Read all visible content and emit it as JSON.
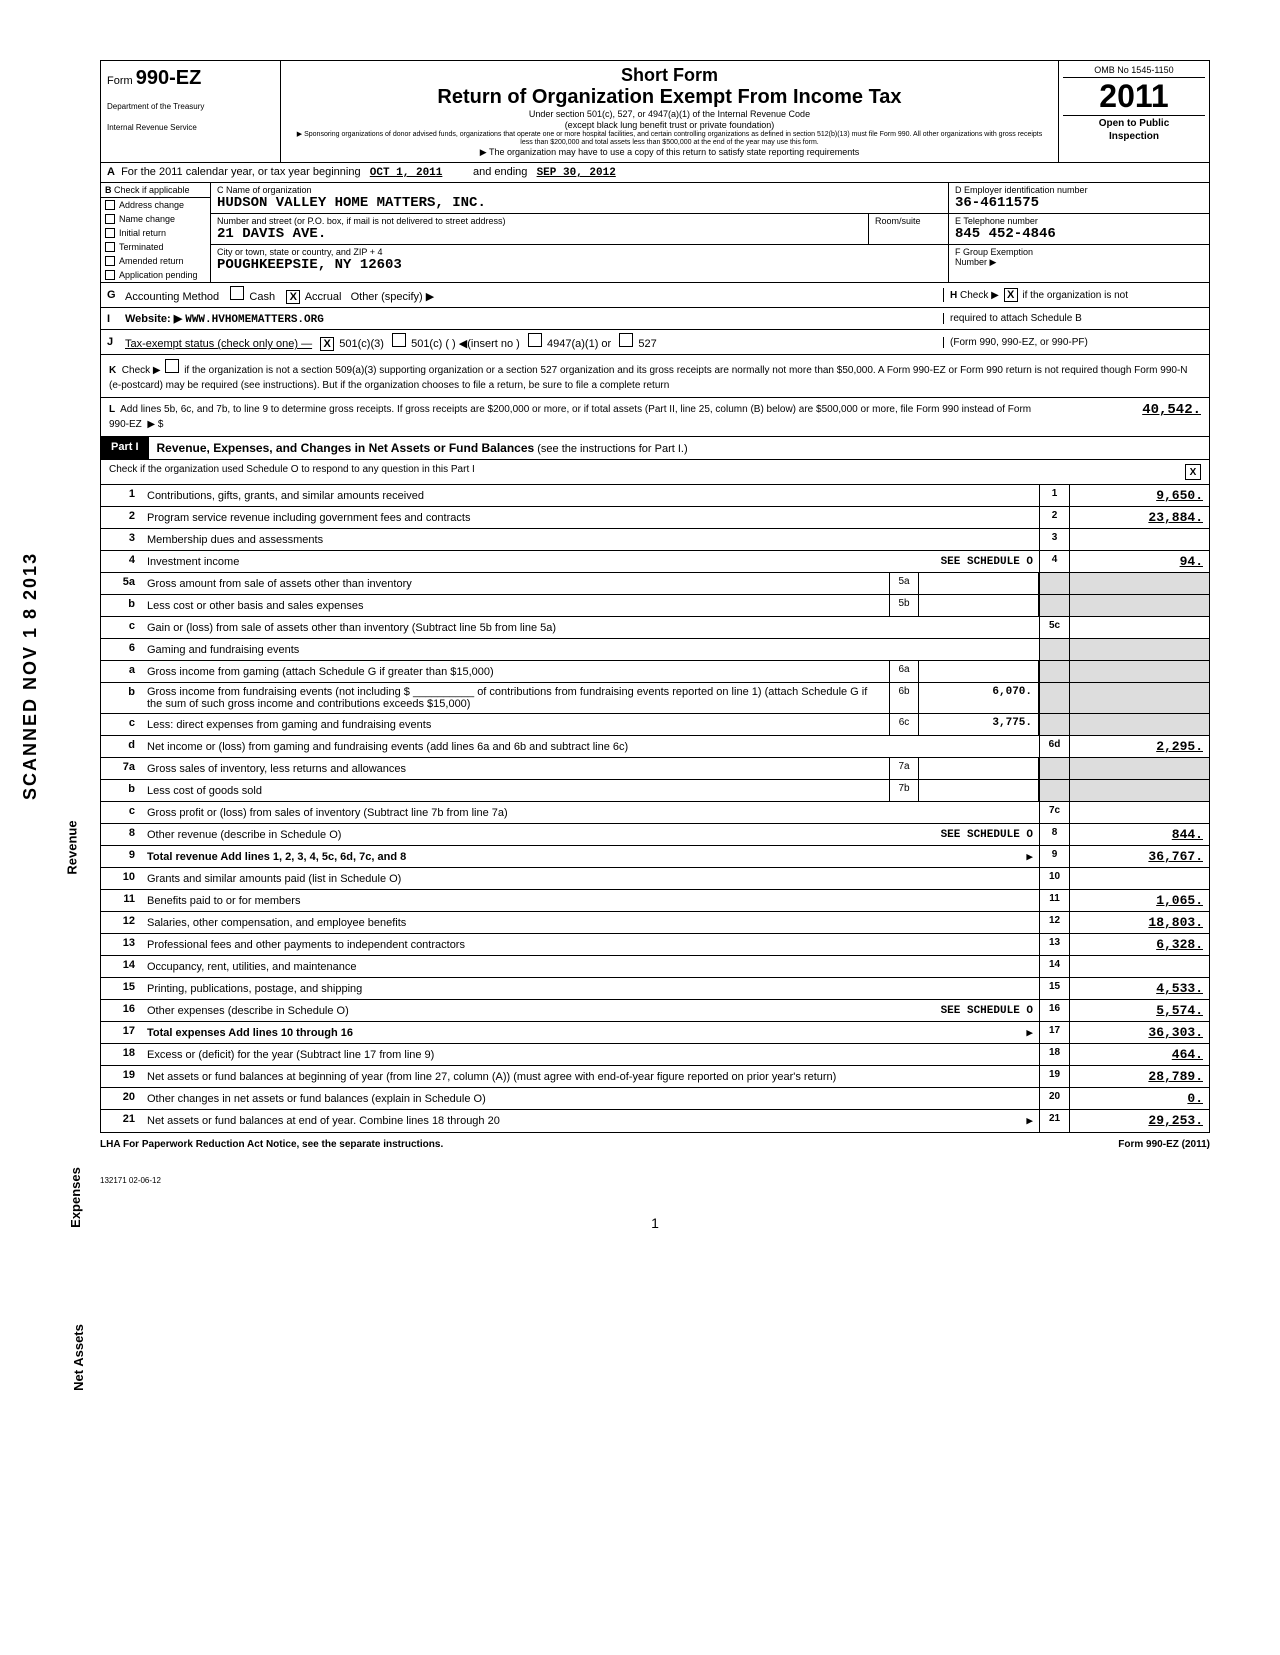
{
  "vertical_stamp": "SCANNED NOV 1 8 2013",
  "section_labels": {
    "revenue": "Revenue",
    "expenses": "Expenses",
    "netassets": "Net Assets"
  },
  "header": {
    "form_label": "Form",
    "form_num": "990-EZ",
    "dept1": "Department of the Treasury",
    "dept2": "Internal Revenue Service",
    "short_form": "Short Form",
    "main_title": "Return of Organization Exempt From Income Tax",
    "sub1": "Under section 501(c), 527, or 4947(a)(1) of the Internal Revenue Code",
    "sub2": "(except black lung benefit trust or private foundation)",
    "sub3": "▶ Sponsoring organizations of donor advised funds, organizations that operate one or more hospital facilities, and certain controlling organizations as defined in section 512(b)(13) must file Form 990. All other organizations with gross receipts less than $200,000 and total assets less than $500,000 at the end of the year may use this form.",
    "sub4": "▶ The organization may have to use a copy of this return to satisfy state reporting requirements",
    "omb": "OMB No 1545-1150",
    "year": "2011",
    "open1": "Open to Public",
    "open2": "Inspection"
  },
  "line_a": {
    "prefix": "For the 2011 calendar year, or tax year beginning",
    "begin": "OCT 1, 2011",
    "mid": "and ending",
    "end": "SEP 30, 2012"
  },
  "b": {
    "hdr": "Check if applicable",
    "opts": [
      "Address change",
      "Name change",
      "Initial return",
      "Terminated",
      "Amended return",
      "Application pending"
    ]
  },
  "c": {
    "name_lbl": "C Name of organization",
    "name": "HUDSON VALLEY HOME MATTERS, INC.",
    "addr_lbl": "Number and street (or P.O. box, if mail is not delivered to street address)",
    "room_lbl": "Room/suite",
    "addr": "21 DAVIS AVE.",
    "city_lbl": "City or town, state or country, and ZIP + 4",
    "city": "POUGHKEEPSIE, NY  12603"
  },
  "d": {
    "lbl": "D Employer identification number",
    "val": "36-4611575"
  },
  "e": {
    "lbl": "E Telephone number",
    "val": "845 452-4846"
  },
  "f": {
    "lbl": "F Group Exemption",
    "lbl2": "Number ▶"
  },
  "g": {
    "lbl": "Accounting Method",
    "cash": "Cash",
    "accrual": "Accrual",
    "other": "Other (specify) ▶"
  },
  "h": {
    "txt": "Check ▶",
    "txt2": "if the organization is not",
    "txt3": "required to attach Schedule B",
    "txt4": "(Form 990, 990-EZ, or 990-PF)"
  },
  "i": {
    "lbl": "Website: ▶",
    "val": "WWW.HVHOMEMATTERS.ORG"
  },
  "j": {
    "lbl": "Tax-exempt status (check only one) —",
    "o1": "501(c)(3)",
    "o2": "501(c) (",
    "o2b": ") ◀(insert no )",
    "o3": "4947(a)(1) or",
    "o4": "527"
  },
  "k": {
    "lbl": "Check ▶",
    "txt": "if the organization is not a section 509(a)(3) supporting organization or a section 527 organization and its gross receipts are normally not more than $50,000. A Form 990-EZ or Form 990 return is not required though Form 990-N (e-postcard) may be required (see instructions). But if the organization chooses to file a return, be sure to file a complete return"
  },
  "l": {
    "txt": "Add lines 5b, 6c, and 7b, to line 9 to determine gross receipts. If gross receipts are $200,000 or more, or if total assets (Part II, line 25, column (B) below) are $500,000 or more, file Form 990 instead of Form 990-EZ",
    "arrow": "▶ $",
    "val": "40,542."
  },
  "part1": {
    "tag": "Part I",
    "title": "Revenue, Expenses, and Changes in Net Assets or Fund Balances",
    "title_suffix": "(see the instructions for Part I.)",
    "check_o": "Check if the organization used Schedule O to respond to any question in this Part I",
    "check_x": "X"
  },
  "rows": [
    {
      "n": "1",
      "d": "Contributions, gifts, grants, and similar amounts received",
      "ln": "1",
      "amt": "9,650."
    },
    {
      "n": "2",
      "d": "Program service revenue including government fees and contracts",
      "ln": "2",
      "amt": "23,884."
    },
    {
      "n": "3",
      "d": "Membership dues and assessments",
      "ln": "3",
      "amt": ""
    },
    {
      "n": "4",
      "d": "Investment income",
      "extra": "SEE SCHEDULE O",
      "ln": "4",
      "amt": "94."
    },
    {
      "n": "5a",
      "d": "Gross amount from sale of assets other than inventory",
      "mid_n": "5a",
      "mid_v": "",
      "shade_right": true
    },
    {
      "n": "b",
      "d": "Less cost or other basis and sales expenses",
      "mid_n": "5b",
      "mid_v": "",
      "shade_right": true
    },
    {
      "n": "c",
      "d": "Gain or (loss) from sale of assets other than inventory (Subtract line 5b from line 5a)",
      "ln": "5c",
      "amt": ""
    },
    {
      "n": "6",
      "d": "Gaming and fundraising events",
      "shade_right": true,
      "no_mid": true
    },
    {
      "n": "a",
      "d": "Gross income from gaming (attach Schedule G if greater than $15,000)",
      "mid_n": "6a",
      "mid_v": "",
      "shade_right": true
    },
    {
      "n": "b",
      "d": "Gross income from fundraising events (not including $ __________ of contributions from fundraising events reported on line 1) (attach Schedule G if the sum of such gross income and contributions exceeds $15,000)",
      "mid_n": "6b",
      "mid_v": "6,070.",
      "shade_right": true
    },
    {
      "n": "c",
      "d": "Less: direct expenses from gaming and fundraising events",
      "mid_n": "6c",
      "mid_v": "3,775.",
      "shade_right": true
    },
    {
      "n": "d",
      "d": "Net income or (loss) from gaming and fundraising events (add lines 6a and 6b and subtract line 6c)",
      "ln": "6d",
      "amt": "2,295."
    },
    {
      "n": "7a",
      "d": "Gross sales of inventory, less returns and allowances",
      "mid_n": "7a",
      "mid_v": "",
      "shade_right": true
    },
    {
      "n": "b",
      "d": "Less cost of goods sold",
      "mid_n": "7b",
      "mid_v": "",
      "shade_right": true
    },
    {
      "n": "c",
      "d": "Gross profit or (loss) from sales of inventory (Subtract line 7b from line 7a)",
      "ln": "7c",
      "amt": ""
    },
    {
      "n": "8",
      "d": "Other revenue (describe in Schedule O)",
      "extra": "SEE SCHEDULE O",
      "ln": "8",
      "amt": "844."
    },
    {
      "n": "9",
      "d": "Total revenue Add lines 1, 2, 3, 4, 5c, 6d, 7c, and 8",
      "arrow": "▶",
      "ln": "9",
      "amt": "36,767.",
      "bold": true
    },
    {
      "n": "10",
      "d": "Grants and similar amounts paid (list in Schedule O)",
      "ln": "10",
      "amt": ""
    },
    {
      "n": "11",
      "d": "Benefits paid to or for members",
      "ln": "11",
      "amt": "1,065."
    },
    {
      "n": "12",
      "d": "Salaries, other compensation, and employee benefits",
      "ln": "12",
      "amt": "18,803."
    },
    {
      "n": "13",
      "d": "Professional fees and other payments to independent contractors",
      "ln": "13",
      "amt": "6,328."
    },
    {
      "n": "14",
      "d": "Occupancy, rent, utilities, and maintenance",
      "ln": "14",
      "amt": ""
    },
    {
      "n": "15",
      "d": "Printing, publications, postage, and shipping",
      "ln": "15",
      "amt": "4,533."
    },
    {
      "n": "16",
      "d": "Other expenses (describe in Schedule O)",
      "extra": "SEE SCHEDULE O",
      "ln": "16",
      "amt": "5,574."
    },
    {
      "n": "17",
      "d": "Total expenses Add lines 10 through 16",
      "arrow": "▶",
      "ln": "17",
      "amt": "36,303.",
      "bold": true
    },
    {
      "n": "18",
      "d": "Excess or (deficit) for the year (Subtract line 17 from line 9)",
      "ln": "18",
      "amt": "464."
    },
    {
      "n": "19",
      "d": "Net assets or fund balances at beginning of year (from line 27, column (A)) (must agree with end-of-year figure reported on prior year's return)",
      "ln": "19",
      "amt": "28,789."
    },
    {
      "n": "20",
      "d": "Other changes in net assets or fund balances (explain in Schedule O)",
      "ln": "20",
      "amt": "0."
    },
    {
      "n": "21",
      "d": "Net assets or fund balances at end of year. Combine lines 18 through 20",
      "arrow": "▶",
      "ln": "21",
      "amt": "29,253."
    }
  ],
  "footer": {
    "lha": "LHA  For Paperwork Reduction Act Notice, see the separate instructions.",
    "form": "Form 990-EZ (2011)"
  },
  "small_code": "132171\n02-06-12",
  "page_num": "1"
}
